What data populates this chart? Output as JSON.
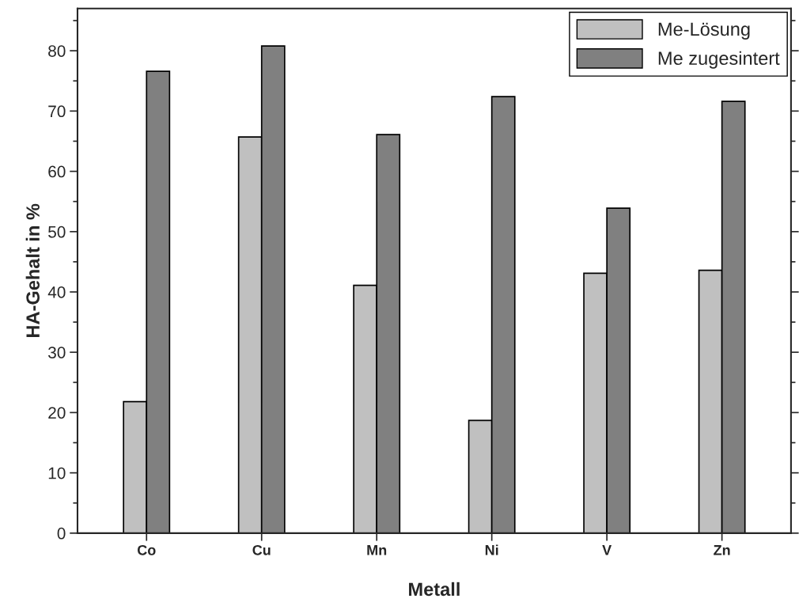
{
  "chart_data": {
    "type": "bar",
    "xlabel": "Metall",
    "ylabel": "HA-Gehalt in %",
    "categories": [
      "Co",
      "Cu",
      "Mn",
      "Ni",
      "V",
      "Zn"
    ],
    "series": [
      {
        "name": "Me-Lösung",
        "color": "#c0c0c0",
        "values": [
          21.8,
          65.7,
          41.1,
          18.7,
          43.1,
          43.6
        ]
      },
      {
        "name": "Me zugesintert",
        "color": "#808080",
        "values": [
          76.6,
          80.8,
          66.1,
          72.4,
          53.9,
          71.6
        ]
      }
    ],
    "ylim": [
      0,
      87
    ],
    "yticks": [
      0,
      10,
      20,
      30,
      40,
      50,
      60,
      70,
      80
    ],
    "grid": false,
    "legend": "top right"
  }
}
